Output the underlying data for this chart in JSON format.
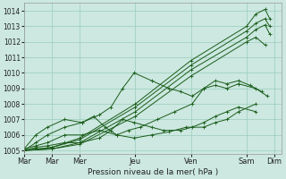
{
  "xlabel": "Pression niveau de la mer( hPa )",
  "ylim": [
    1004.8,
    1014.5
  ],
  "yticks": [
    1005,
    1006,
    1007,
    1008,
    1009,
    1010,
    1011,
    1012,
    1013,
    1014
  ],
  "xlim": [
    0,
    222
  ],
  "day_labels": [
    "Mar",
    "Mar",
    "Mer",
    "Jeu",
    "Ven",
    "Sam",
    "Dim"
  ],
  "day_positions": [
    0,
    24,
    48,
    96,
    144,
    192,
    216
  ],
  "bg_color": "#cce8e0",
  "grid_color": "#99ccbb",
  "line_color": "#1a5c1a",
  "lines": [
    {
      "x": [
        0,
        24,
        48,
        96,
        144,
        192,
        200,
        208,
        212
      ],
      "y": [
        1005.0,
        1005.2,
        1005.8,
        1008.0,
        1010.8,
        1013.0,
        1013.8,
        1014.1,
        1013.5
      ]
    },
    {
      "x": [
        0,
        24,
        48,
        96,
        144,
        192,
        200,
        208,
        212
      ],
      "y": [
        1005.0,
        1005.2,
        1005.7,
        1007.8,
        1010.5,
        1012.7,
        1013.2,
        1013.5,
        1013.0
      ]
    },
    {
      "x": [
        0,
        24,
        48,
        96,
        144,
        192,
        200,
        208,
        212
      ],
      "y": [
        1005.0,
        1005.1,
        1005.5,
        1007.5,
        1010.2,
        1012.3,
        1012.8,
        1013.1,
        1012.5
      ]
    },
    {
      "x": [
        0,
        24,
        48,
        96,
        144,
        192,
        200,
        208
      ],
      "y": [
        1005.0,
        1005.1,
        1005.4,
        1007.2,
        1009.8,
        1012.0,
        1012.3,
        1011.8
      ]
    },
    {
      "x": [
        0,
        10,
        20,
        35,
        50,
        60,
        70,
        80,
        90,
        100,
        115,
        130,
        145,
        155,
        165,
        175,
        185,
        195,
        205
      ],
      "y": [
        1005.1,
        1006.0,
        1006.5,
        1007.0,
        1006.8,
        1007.2,
        1006.5,
        1006.0,
        1006.3,
        1006.5,
        1007.0,
        1007.5,
        1008.0,
        1009.0,
        1009.5,
        1009.3,
        1009.5,
        1009.2,
        1008.8
      ]
    },
    {
      "x": [
        0,
        10,
        20,
        35,
        50,
        65,
        75,
        85,
        95,
        110,
        125,
        135,
        145,
        155,
        165,
        175,
        185,
        200,
        210
      ],
      "y": [
        1005.0,
        1005.5,
        1006.0,
        1006.5,
        1006.8,
        1007.3,
        1007.8,
        1009.0,
        1010.0,
        1009.5,
        1009.0,
        1008.8,
        1008.5,
        1009.0,
        1009.2,
        1009.0,
        1009.3,
        1009.0,
        1008.5
      ]
    },
    {
      "x": [
        0,
        10,
        20,
        35,
        50,
        65,
        80,
        95,
        110,
        125,
        140,
        155,
        165,
        175,
        185,
        200
      ],
      "y": [
        1005.1,
        1005.3,
        1005.5,
        1006.0,
        1006.0,
        1006.3,
        1006.0,
        1005.8,
        1006.0,
        1006.2,
        1006.5,
        1006.5,
        1006.8,
        1007.0,
        1007.5,
        1008.0
      ]
    },
    {
      "x": [
        0,
        10,
        20,
        35,
        48,
        65,
        75,
        85,
        95,
        110,
        120,
        135,
        145,
        155,
        165,
        175,
        185,
        200
      ],
      "y": [
        1005.0,
        1005.2,
        1005.3,
        1005.5,
        1005.5,
        1005.8,
        1006.3,
        1007.0,
        1006.8,
        1006.5,
        1006.3,
        1006.3,
        1006.5,
        1006.8,
        1007.2,
        1007.5,
        1007.8,
        1007.5
      ]
    }
  ]
}
